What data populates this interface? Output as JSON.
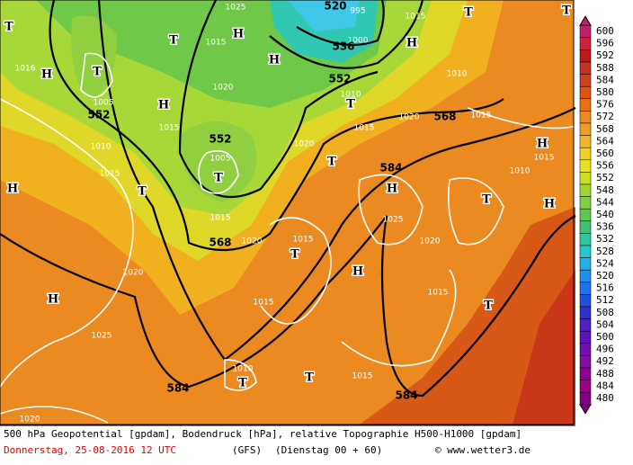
{
  "map": {
    "geopotential_labels": [
      552,
      552,
      568,
      552,
      536,
      520,
      568,
      584,
      584,
      584
    ],
    "pressure_labels": [
      1025,
      1015,
      1020,
      1015,
      1005,
      1010,
      1015,
      1005,
      1015,
      1020,
      1020,
      1015,
      1010,
      1015,
      1020,
      1015,
      1010,
      1010,
      1015,
      1025,
      1020,
      1020,
      1015,
      1025,
      1015,
      1010,
      1015,
      1020,
      1016,
      995,
      1000,
      1015
    ],
    "pressure_centers": [
      "T",
      "H",
      "T",
      "T",
      "H",
      "H",
      "H",
      "T",
      "H",
      "T",
      "T",
      "T",
      "H",
      "T",
      "T",
      "H",
      "T",
      "H",
      "H",
      "T",
      "H",
      "H",
      "T",
      "T",
      "T"
    ]
  },
  "legend": {
    "entries": [
      {
        "value": 600,
        "color": "#c0206a"
      },
      {
        "value": 596,
        "color": "#d02040"
      },
      {
        "value": 592,
        "color": "#c01818"
      },
      {
        "value": 588,
        "color": "#c83020"
      },
      {
        "value": 584,
        "color": "#d04020"
      },
      {
        "value": 580,
        "color": "#e05010"
      },
      {
        "value": 576,
        "color": "#e87010"
      },
      {
        "value": 572,
        "color": "#f08820"
      },
      {
        "value": 568,
        "color": "#f0a020"
      },
      {
        "value": 564,
        "color": "#f0b828"
      },
      {
        "value": 560,
        "color": "#f0d020"
      },
      {
        "value": 556,
        "color": "#e8e020"
      },
      {
        "value": 552,
        "color": "#c8e020"
      },
      {
        "value": 548,
        "color": "#a0d830"
      },
      {
        "value": 544,
        "color": "#80d040"
      },
      {
        "value": 540,
        "color": "#60c850"
      },
      {
        "value": 536,
        "color": "#40c070"
      },
      {
        "value": 532,
        "color": "#30c8a0"
      },
      {
        "value": 528,
        "color": "#20c8d0"
      },
      {
        "value": 524,
        "color": "#20b0e8"
      },
      {
        "value": 520,
        "color": "#2090f0"
      },
      {
        "value": 516,
        "color": "#2070f0"
      },
      {
        "value": 512,
        "color": "#2050e0"
      },
      {
        "value": 508,
        "color": "#3030d0"
      },
      {
        "value": 504,
        "color": "#5020c8"
      },
      {
        "value": 500,
        "color": "#6010c0"
      },
      {
        "value": 496,
        "color": "#7010b0"
      },
      {
        "value": 492,
        "color": "#8010a0"
      },
      {
        "value": 488,
        "color": "#900090"
      },
      {
        "value": 484,
        "color": "#a00080"
      },
      {
        "value": 480,
        "color": "#800080"
      }
    ]
  },
  "footer": {
    "description": "500 hPa Geopotential [gpdam], Bodendruck [hPa], relative Topographie H500-H1000 [gpdam]",
    "date": "Donnerstag, 25-08-2016  12 UTC",
    "model": "(GFS)",
    "run": "(Dienstag 00 + 60)",
    "credit": "© www.wetter3.de"
  }
}
